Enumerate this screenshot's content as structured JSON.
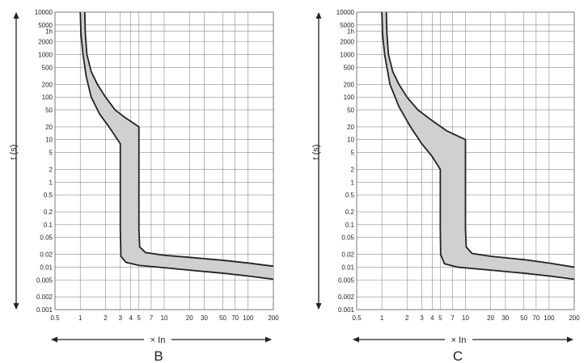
{
  "chart_data": [
    {
      "type": "area",
      "panel_label": "B",
      "xlabel": "× In",
      "ylabel": "t (s)",
      "x_scale": "log",
      "y_scale": "log",
      "xlim": [
        0.5,
        200
      ],
      "ylim": [
        0.001,
        10000
      ],
      "grid": true,
      "x_tick_labels": [
        "0.5",
        "1",
        "2",
        "3",
        "4",
        "5",
        "7",
        "10",
        "20",
        "30",
        "50",
        "70",
        "100",
        "200"
      ],
      "x_tick_values": [
        0.5,
        1,
        2,
        3,
        4,
        5,
        7,
        10,
        20,
        30,
        50,
        70,
        100,
        200
      ],
      "y_tick_labels": [
        "10000",
        "5000",
        "1h",
        "2000",
        "1000",
        "500",
        "200",
        "100",
        "50",
        "20",
        "10",
        "5",
        "2",
        "1",
        "0.5",
        "0.2",
        "0.1",
        "0.05",
        "0.02",
        "0.01",
        "0.005",
        "0.002",
        "0.001"
      ],
      "y_tick_values": [
        10000,
        5000,
        3600,
        2000,
        1000,
        500,
        200,
        100,
        50,
        20,
        10,
        5,
        2,
        1,
        0.5,
        0.2,
        0.1,
        0.05,
        0.02,
        0.01,
        0.005,
        0.002,
        0.001
      ],
      "band_fill": "#d0d0d0",
      "line_color": "#222222",
      "series": [
        {
          "points": [
            [
              1.13,
              10000
            ],
            [
              1.15,
              3000
            ],
            [
              1.2,
              1000
            ],
            [
              1.35,
              400
            ],
            [
              1.6,
              200
            ],
            [
              2,
              100
            ],
            [
              2.6,
              50
            ],
            [
              3.5,
              32
            ],
            [
              5,
              20
            ],
            [
              5,
              0.08
            ],
            [
              5.1,
              0.03
            ],
            [
              6,
              0.022
            ],
            [
              10,
              0.019
            ],
            [
              20,
              0.017
            ],
            [
              50,
              0.0145
            ],
            [
              100,
              0.0125
            ],
            [
              200,
              0.0105
            ]
          ]
        },
        {
          "points": [
            [
              1,
              10000
            ],
            [
              1.02,
              3000
            ],
            [
              1.08,
              1000
            ],
            [
              1.18,
              300
            ],
            [
              1.35,
              100
            ],
            [
              1.7,
              40
            ],
            [
              2.2,
              20
            ],
            [
              3,
              8
            ],
            [
              3,
              0.08
            ],
            [
              3.05,
              0.018
            ],
            [
              3.5,
              0.013
            ],
            [
              5,
              0.011
            ],
            [
              10,
              0.0097
            ],
            [
              20,
              0.0085
            ],
            [
              50,
              0.0072
            ],
            [
              100,
              0.0062
            ],
            [
              200,
              0.0052
            ]
          ]
        }
      ]
    },
    {
      "type": "area",
      "panel_label": "C",
      "xlabel": "× In",
      "ylabel": "t (s)",
      "x_scale": "log",
      "y_scale": "log",
      "xlim": [
        0.5,
        200
      ],
      "ylim": [
        0.001,
        10000
      ],
      "grid": true,
      "x_tick_labels": [
        "0.5",
        "1",
        "2",
        "3",
        "4",
        "5",
        "7",
        "10",
        "20",
        "30",
        "50",
        "70",
        "100",
        "200"
      ],
      "x_tick_values": [
        0.5,
        1,
        2,
        3,
        4,
        5,
        7,
        10,
        20,
        30,
        50,
        70,
        100,
        200
      ],
      "y_tick_labels": [
        "10000",
        "5000",
        "1h",
        "2000",
        "1000",
        "500",
        "200",
        "100",
        "50",
        "20",
        "10",
        "5",
        "2",
        "1",
        "0.5",
        "0.2",
        "0.1",
        "0.05",
        "0.02",
        "0.01",
        "0.005",
        "0.002",
        "0.001"
      ],
      "y_tick_values": [
        10000,
        5000,
        3600,
        2000,
        1000,
        500,
        200,
        100,
        50,
        20,
        10,
        5,
        2,
        1,
        0.5,
        0.2,
        0.1,
        0.05,
        0.02,
        0.01,
        0.005,
        0.002,
        0.001
      ],
      "band_fill": "#d0d0d0",
      "line_color": "#222222",
      "series": [
        {
          "points": [
            [
              1.13,
              10000
            ],
            [
              1.15,
              3000
            ],
            [
              1.2,
              1000
            ],
            [
              1.35,
              400
            ],
            [
              1.6,
              200
            ],
            [
              2,
              100
            ],
            [
              2.7,
              50
            ],
            [
              4,
              28
            ],
            [
              6,
              16
            ],
            [
              10,
              10
            ],
            [
              10,
              0.08
            ],
            [
              10.2,
              0.03
            ],
            [
              12,
              0.021
            ],
            [
              20,
              0.018
            ],
            [
              50,
              0.015
            ],
            [
              100,
              0.0125
            ],
            [
              200,
              0.01
            ]
          ]
        },
        {
          "points": [
            [
              1,
              10000
            ],
            [
              1.02,
              3000
            ],
            [
              1.08,
              1000
            ],
            [
              1.25,
              200
            ],
            [
              1.6,
              60
            ],
            [
              2.2,
              20
            ],
            [
              3,
              8
            ],
            [
              4,
              4
            ],
            [
              5,
              2
            ],
            [
              5,
              0.08
            ],
            [
              5.05,
              0.02
            ],
            [
              5.6,
              0.012
            ],
            [
              8,
              0.01
            ],
            [
              20,
              0.0085
            ],
            [
              50,
              0.0072
            ],
            [
              100,
              0.0062
            ],
            [
              200,
              0.0052
            ]
          ]
        }
      ]
    }
  ]
}
